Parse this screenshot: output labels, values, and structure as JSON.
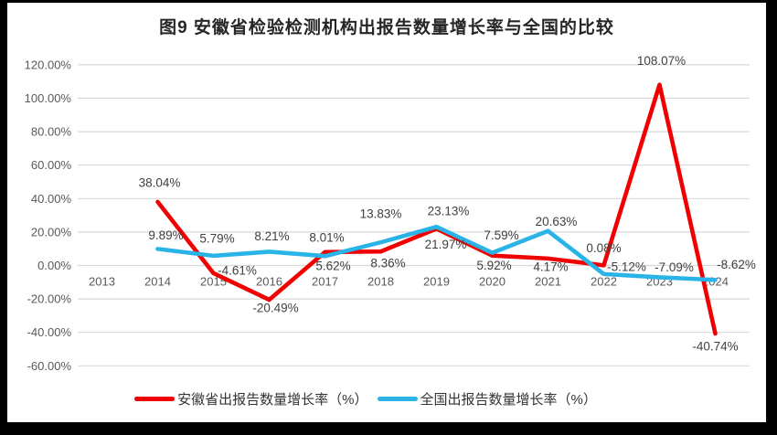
{
  "page": {
    "background": "#000000",
    "canvas_background": "#FFFFFF"
  },
  "chart_data": {
    "type": "line",
    "title": "图9 安徽省检验检测机构出报告数量增长率与全国的比较",
    "categories": [
      "2013",
      "2014",
      "2015",
      "2016",
      "2017",
      "2018",
      "2019",
      "2020",
      "2021",
      "2022",
      "2023",
      "2024"
    ],
    "series": [
      {
        "name": "安徽省出报告数量增长率（%）",
        "color": "#F00000",
        "values": [
          null,
          38.04,
          -4.61,
          -20.49,
          8.01,
          8.36,
          21.97,
          5.92,
          4.17,
          0.08,
          108.07,
          -40.74
        ],
        "data_labels": [
          "",
          "38.04%",
          "-4.61%",
          "-20.49%",
          "8.01%",
          "8.36%",
          "21.97%",
          "5.92%",
          "4.17%",
          "0.08%",
          "108.07%",
          "-40.74%"
        ],
        "label_offsets": [
          [
            0,
            0
          ],
          [
            2,
            -21
          ],
          [
            26,
            -3
          ],
          [
            7,
            9
          ],
          [
            2,
            -16
          ],
          [
            8,
            13
          ],
          [
            10,
            17
          ],
          [
            2,
            11
          ],
          [
            3,
            9
          ],
          [
            0,
            -19
          ],
          [
            2,
            -26
          ],
          [
            0,
            14
          ]
        ]
      },
      {
        "name": "全国出报告数量增长率（%）",
        "color": "#29B3E6",
        "values": [
          null,
          9.89,
          5.79,
          8.21,
          5.62,
          13.83,
          23.13,
          7.59,
          20.63,
          -5.12,
          -7.09,
          -8.62
        ],
        "data_labels": [
          "",
          "9.89%",
          "5.79%",
          "8.21%",
          "5.62%",
          "13.83%",
          "23.13%",
          "7.59%",
          "20.63%",
          "-5.12%",
          "-7.09%",
          "-8.62%"
        ],
        "label_offsets": [
          [
            0,
            0
          ],
          [
            9,
            -15
          ],
          [
            4,
            -19
          ],
          [
            3,
            -17
          ],
          [
            9,
            11
          ],
          [
            0,
            -31
          ],
          [
            13,
            -17
          ],
          [
            10,
            -19
          ],
          [
            9,
            -10
          ],
          [
            25,
            -8
          ],
          [
            16,
            -11
          ],
          [
            23,
            -17
          ]
        ]
      }
    ],
    "y_axis": {
      "min": -60,
      "max": 120,
      "step": 20,
      "tick_labels": [
        "120.00%",
        "100.00%",
        "80.00%",
        "60.00%",
        "40.00%",
        "20.00%",
        "0.00%",
        "-20.00%",
        "-40.00%",
        "-60.00%"
      ]
    },
    "x_axis": {
      "label_position": "near-zero-line"
    },
    "grid": true,
    "gridline_color": "#D9D9D9",
    "axis_text_color": "#595959",
    "data_label_color": "#404040",
    "legend_position": "bottom"
  }
}
